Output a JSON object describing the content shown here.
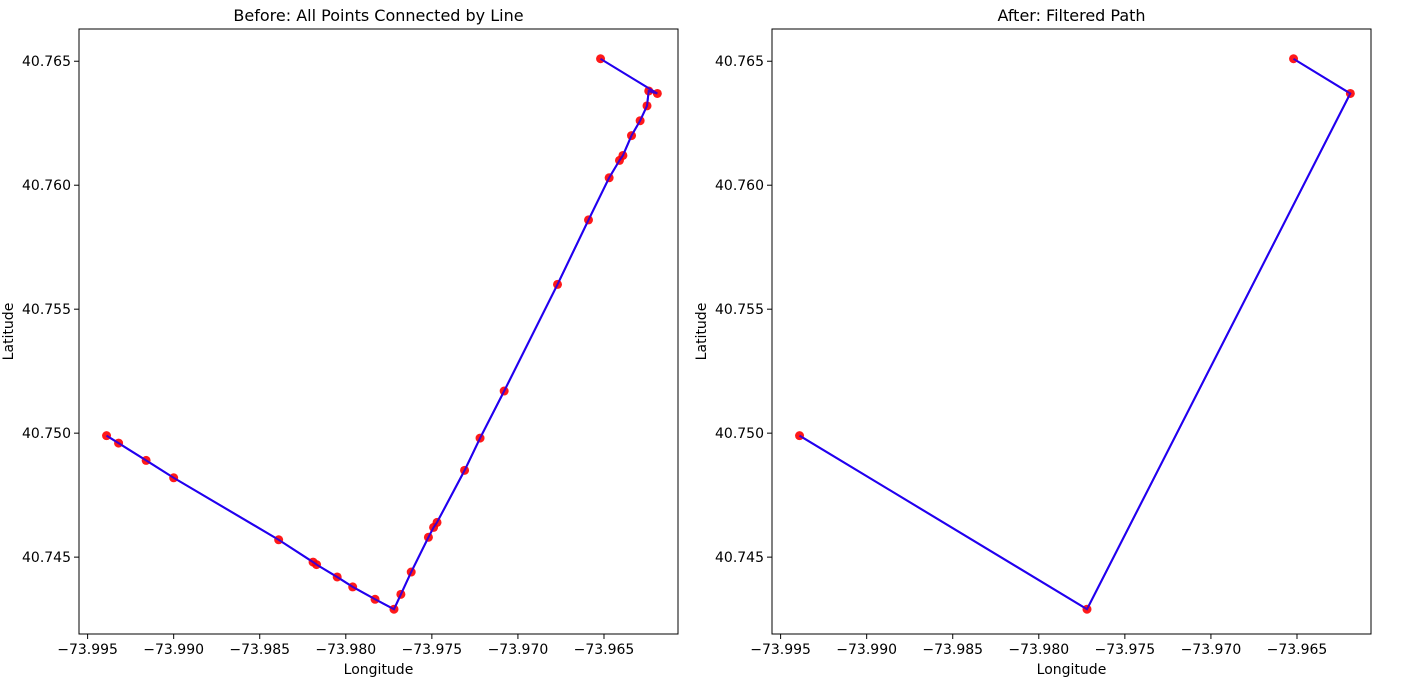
{
  "chart_data": [
    {
      "type": "line",
      "title": "Before: All Points Connected by Line",
      "xlabel": "Longitude",
      "ylabel": "Latitude",
      "xlim": [
        -73.9955,
        -73.9607
      ],
      "ylim": [
        40.7419,
        40.7663
      ],
      "xticks": [
        -73.995,
        -73.99,
        -73.985,
        -73.98,
        -73.975,
        -73.97,
        -73.965
      ],
      "xtick_labels": [
        "−73.995",
        "−73.990",
        "−73.985",
        "−73.980",
        "−73.975",
        "−73.970",
        "−73.965"
      ],
      "yticks": [
        40.745,
        40.75,
        40.755,
        40.76,
        40.765
      ],
      "ytick_labels": [
        "40.745",
        "40.750",
        "40.755",
        "40.760",
        "40.765"
      ],
      "grid": false,
      "line_color": "#2200ee",
      "marker_color": "#ff0000",
      "points": [
        [
          -73.9939,
          40.7499
        ],
        [
          -73.9932,
          40.7496
        ],
        [
          -73.9916,
          40.7489
        ],
        [
          -73.99,
          40.7482
        ],
        [
          -73.9839,
          40.7457
        ],
        [
          -73.9819,
          40.7448
        ],
        [
          -73.9817,
          40.7447
        ],
        [
          -73.9805,
          40.7442
        ],
        [
          -73.9796,
          40.7438
        ],
        [
          -73.9783,
          40.7433
        ],
        [
          -73.9772,
          40.7429
        ],
        [
          -73.9768,
          40.7435
        ],
        [
          -73.9762,
          40.7444
        ],
        [
          -73.9752,
          40.7458
        ],
        [
          -73.9749,
          40.7462
        ],
        [
          -73.9747,
          40.7464
        ],
        [
          -73.9731,
          40.7485
        ],
        [
          -73.9722,
          40.7498
        ],
        [
          -73.9708,
          40.7517
        ],
        [
          -73.9677,
          40.756
        ],
        [
          -73.9659,
          40.7586
        ],
        [
          -73.9647,
          40.7603
        ],
        [
          -73.9641,
          40.761
        ],
        [
          -73.9639,
          40.7612
        ],
        [
          -73.9634,
          40.762
        ],
        [
          -73.9629,
          40.7626
        ],
        [
          -73.9625,
          40.7632
        ],
        [
          -73.9624,
          40.7638
        ],
        [
          -73.9619,
          40.7637
        ],
        [
          -73.9652,
          40.7651
        ]
      ]
    },
    {
      "type": "line",
      "title": "After: Filtered Path",
      "xlabel": "Longitude",
      "ylabel": "Latitude",
      "xlim": [
        -73.9955,
        -73.9607
      ],
      "ylim": [
        40.7419,
        40.7663
      ],
      "xticks": [
        -73.995,
        -73.99,
        -73.985,
        -73.98,
        -73.975,
        -73.97,
        -73.965
      ],
      "xtick_labels": [
        "−73.995",
        "−73.990",
        "−73.985",
        "−73.980",
        "−73.975",
        "−73.970",
        "−73.965"
      ],
      "yticks": [
        40.745,
        40.75,
        40.755,
        40.76,
        40.765
      ],
      "ytick_labels": [
        "40.745",
        "40.750",
        "40.755",
        "40.760",
        "40.765"
      ],
      "grid": false,
      "line_color": "#2200ee",
      "marker_color": "#ff0000",
      "points": [
        [
          -73.9939,
          40.7499
        ],
        [
          -73.9772,
          40.7429
        ],
        [
          -73.9619,
          40.7637
        ],
        [
          -73.9652,
          40.7651
        ]
      ]
    }
  ]
}
